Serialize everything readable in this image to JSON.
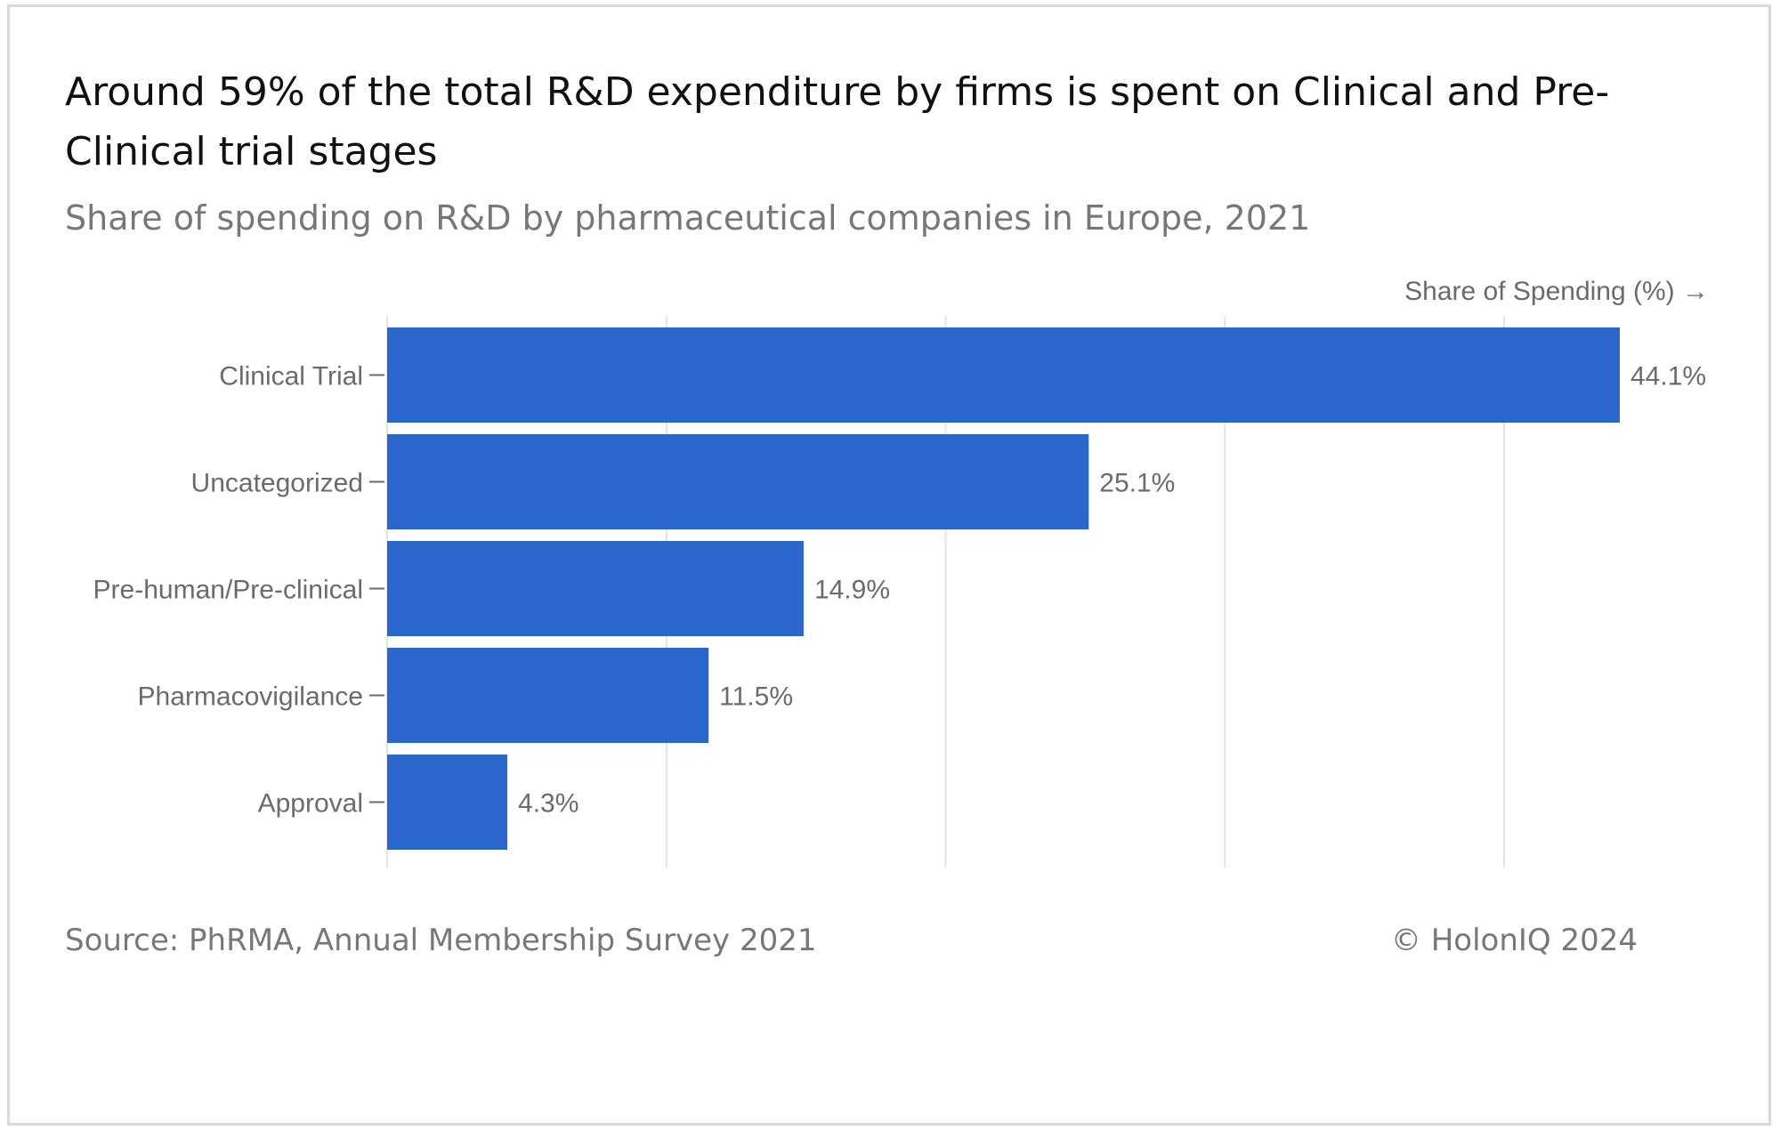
{
  "title": "Around 59% of the total R&D expenditure by firms is spent on Clinical and Pre-Clinical trial stages",
  "subtitle": "Share of spending on R&D by pharmaceutical companies in Europe, 2021",
  "source": "Source: PhRMA, Annual Membership Survey 2021",
  "copyright": "© HolonIQ 2024",
  "colors": {
    "bar": "#2a66cc",
    "grid": "#e3e3e3",
    "text_muted": "#6b6b6b"
  },
  "chart_data": {
    "type": "bar",
    "orientation": "horizontal",
    "title": "Around 59% of the total R&D expenditure by firms is spent on Clinical and Pre-Clinical trial stages",
    "subtitle": "Share of spending on R&D by pharmaceutical companies in Europe, 2021",
    "xlabel": "Share of Spending (%) →",
    "ylabel": "",
    "categories": [
      "Clinical Trial",
      "Uncategorized",
      "Pre-human/Pre-clinical",
      "Pharmacovigilance",
      "Approval"
    ],
    "values": [
      44.1,
      25.1,
      14.9,
      11.5,
      4.3
    ],
    "data_labels": [
      "44.1%",
      "25.1%",
      "14.9%",
      "11.5%",
      "4.3%"
    ],
    "xlim": [
      0,
      45
    ],
    "grid": true,
    "legend": "none"
  }
}
